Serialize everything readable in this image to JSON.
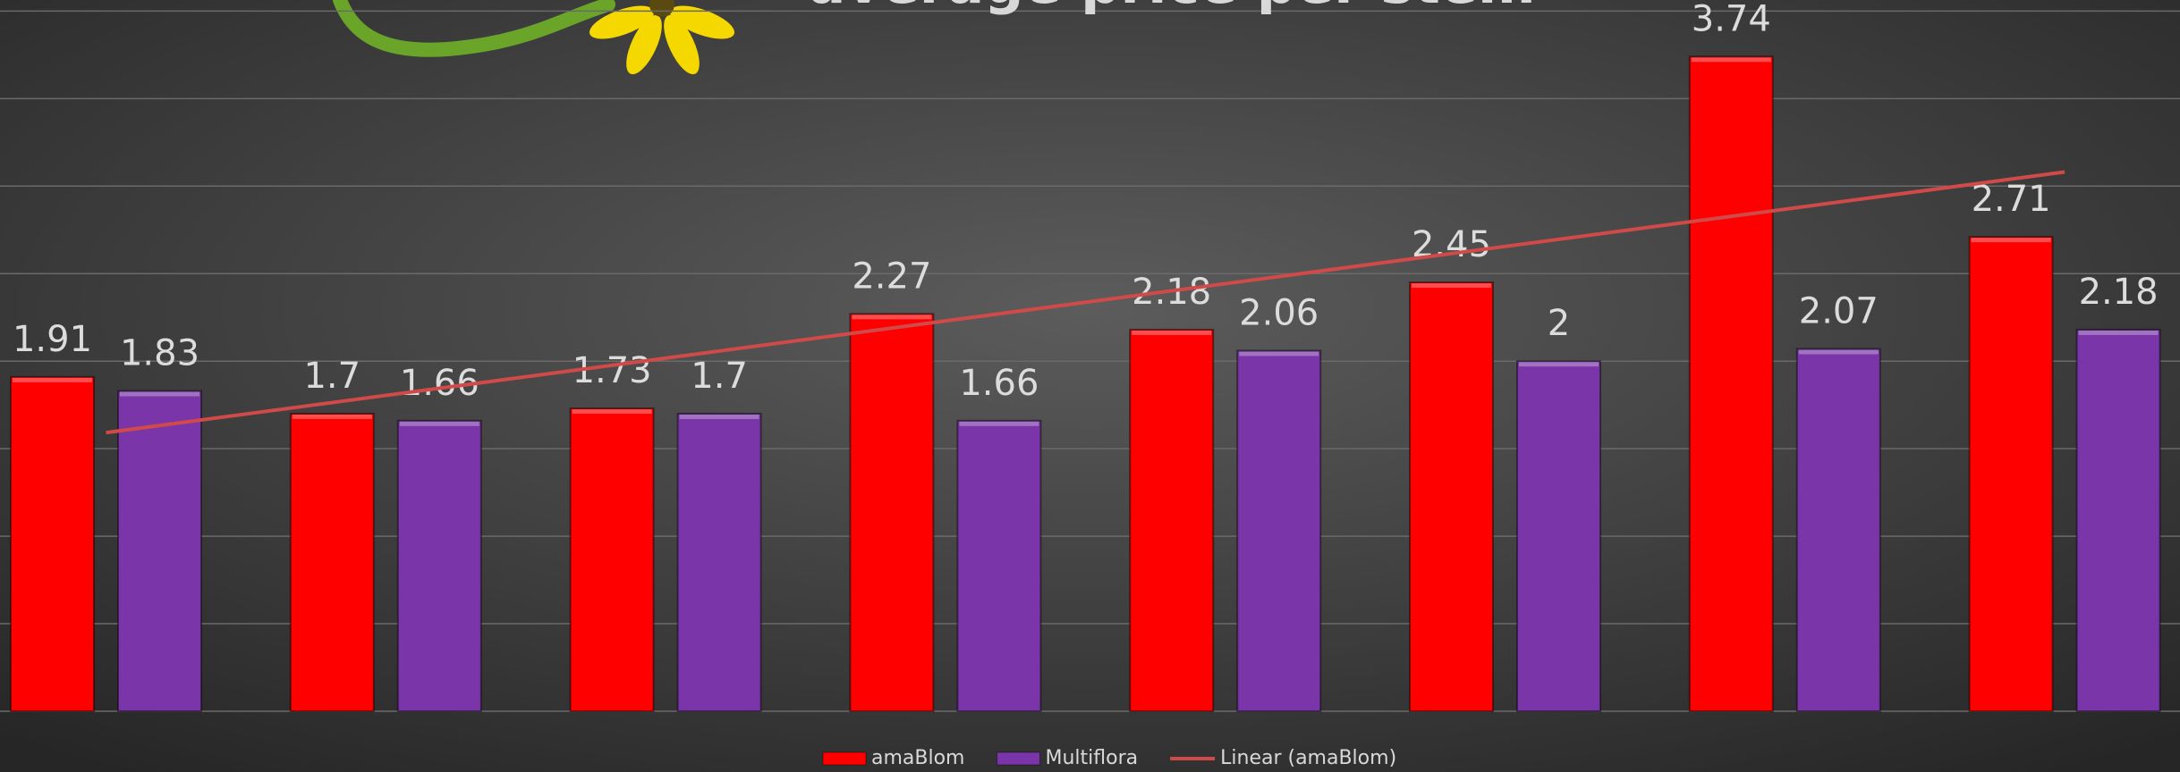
{
  "chart_data": {
    "type": "bar",
    "title": "average price per stem",
    "categories": [
      null,
      null,
      null,
      null,
      null,
      null,
      null,
      null
    ],
    "series": [
      {
        "name": "amaBlom",
        "color": "#ff0000",
        "values": [
          1.91,
          1.7,
          1.73,
          2.27,
          2.18,
          2.45,
          3.74,
          2.71
        ],
        "trendline": {
          "name": "Linear (amaBlom)",
          "color": "#d04a4a"
        }
      },
      {
        "name": "Multiflora",
        "color": "#7a35a8",
        "values": [
          1.83,
          1.66,
          1.7,
          1.66,
          2.06,
          2,
          2.07,
          2.18
        ]
      }
    ],
    "ylim": [
      0,
      4
    ],
    "yticks": [
      0,
      0.5,
      1,
      1.5,
      2,
      2.5,
      3,
      3.5,
      4
    ],
    "grid": true,
    "legend": "bottom"
  }
}
